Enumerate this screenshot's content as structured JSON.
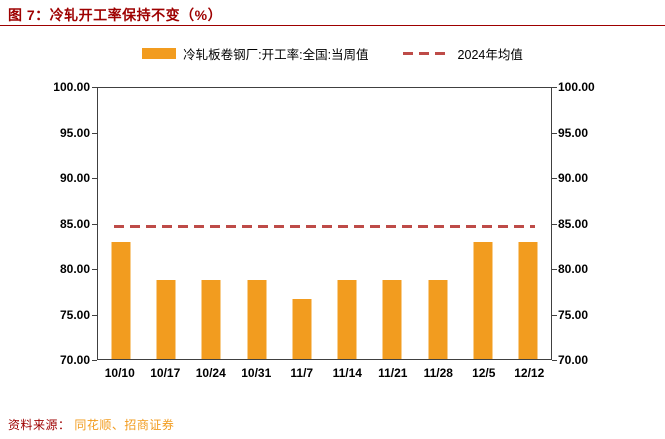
{
  "header": {
    "title": "图 7：冷轧开工率保持不变（%）"
  },
  "legend": {
    "bar_label": "冷轧板卷钢厂:开工率:全国:当周值",
    "line_label": "2024年均值"
  },
  "footer": {
    "source_label": "资料来源：",
    "source_value": "同花顺、招商证券"
  },
  "colors": {
    "bar_orange": "#F29C1F",
    "title_red": "#9E0000",
    "dashed_line_red": "#BE4B48"
  },
  "chart_data": {
    "type": "bar",
    "title": "冷轧开工率保持不变（%）",
    "categories": [
      "10/10",
      "10/17",
      "10/24",
      "10/31",
      "11/7",
      "11/14",
      "11/21",
      "11/28",
      "12/5",
      "12/12"
    ],
    "values": [
      83.0,
      78.7,
      78.7,
      78.7,
      76.6,
      78.7,
      78.7,
      78.7,
      83.0,
      83.0
    ],
    "series_name": "冷轧板卷钢厂:开工率:全国:当周值",
    "average_line": {
      "name": "2024年均值",
      "value": 84.7
    },
    "ylim": [
      70,
      100
    ],
    "yticks": [
      70,
      75,
      80,
      85,
      90,
      95,
      100
    ],
    "ytick_format": "two_decimals",
    "xlabel": "",
    "ylabel": "",
    "grid": false,
    "legend_position": "top-center"
  }
}
